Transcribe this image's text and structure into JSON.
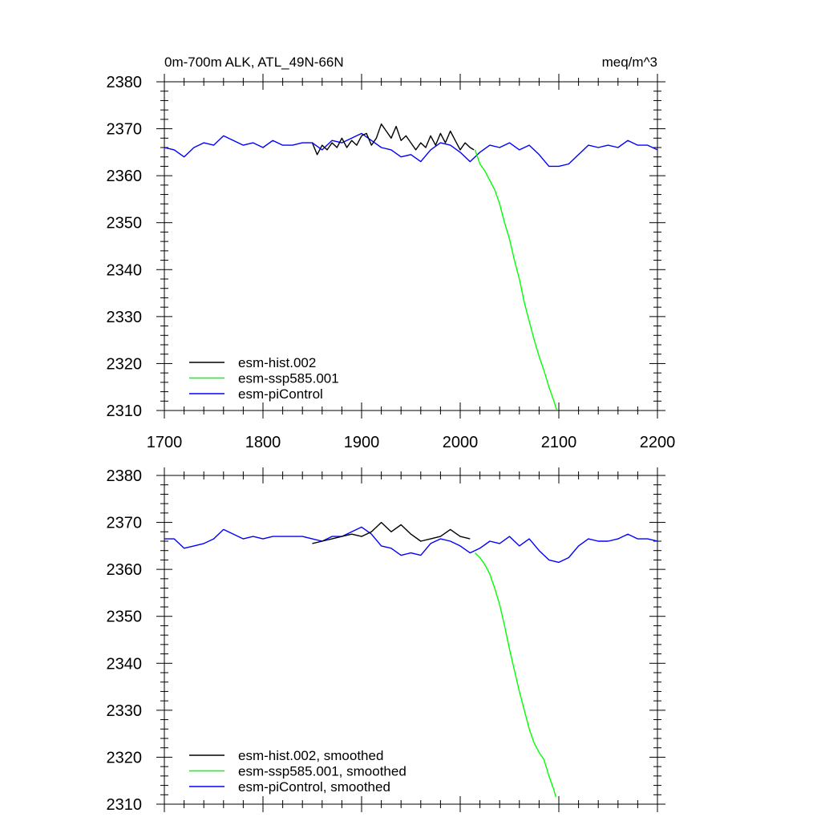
{
  "header": {
    "left_title": "0m-700m ALK, ATL_49N-66N",
    "right_title": "meq/m^3"
  },
  "chart_data": [
    {
      "type": "line",
      "xlim": [
        1700,
        2200
      ],
      "ylim": [
        2310,
        2380
      ],
      "x_ticks": [
        "1700",
        "1800",
        "1900",
        "2000",
        "2100",
        "2200"
      ],
      "y_ticks": [
        "2310",
        "2320",
        "2330",
        "2340",
        "2350",
        "2360",
        "2370",
        "2380"
      ],
      "legend_position": "bottom-left",
      "series": [
        {
          "name": "esm-hist.002",
          "color": "#000000",
          "x": [
            1850,
            1855,
            1860,
            1865,
            1870,
            1875,
            1880,
            1885,
            1890,
            1895,
            1900,
            1905,
            1910,
            1915,
            1920,
            1925,
            1930,
            1935,
            1940,
            1945,
            1950,
            1955,
            1960,
            1965,
            1970,
            1975,
            1980,
            1985,
            1990,
            1995,
            2000,
            2005,
            2010,
            2014
          ],
          "y": [
            2367.0,
            2364.5,
            2366.5,
            2365.5,
            2367.0,
            2366.0,
            2368.0,
            2366.0,
            2367.5,
            2366.5,
            2368.5,
            2369.0,
            2366.5,
            2368.0,
            2371.0,
            2369.5,
            2368.0,
            2370.5,
            2367.5,
            2368.5,
            2367.0,
            2365.5,
            2367.0,
            2366.0,
            2368.5,
            2366.5,
            2369.0,
            2367.0,
            2369.5,
            2367.5,
            2365.5,
            2367.0,
            2366.0,
            2365.5
          ]
        },
        {
          "name": "esm-ssp585.001",
          "color": "#00ff00",
          "x": [
            2015,
            2020,
            2025,
            2030,
            2035,
            2040,
            2045,
            2050,
            2055,
            2060,
            2065,
            2070,
            2075,
            2080,
            2085,
            2090,
            2095,
            2098
          ],
          "y": [
            2365.5,
            2362.5,
            2361.0,
            2359.0,
            2357.0,
            2354.0,
            2350.0,
            2346.5,
            2342.0,
            2338.0,
            2333.0,
            2329.0,
            2325.0,
            2321.5,
            2318.5,
            2315.0,
            2312.0,
            2310.0
          ]
        },
        {
          "name": "esm-piControl",
          "color": "#0000ff",
          "x": [
            1700,
            1710,
            1720,
            1730,
            1740,
            1750,
            1760,
            1770,
            1780,
            1790,
            1800,
            1810,
            1820,
            1830,
            1840,
            1850,
            1860,
            1870,
            1880,
            1890,
            1900,
            1910,
            1920,
            1930,
            1940,
            1950,
            1960,
            1970,
            1980,
            1990,
            2000,
            2010,
            2020,
            2030,
            2040,
            2050,
            2060,
            2070,
            2080,
            2090,
            2100,
            2110,
            2120,
            2130,
            2140,
            2150,
            2160,
            2170,
            2180,
            2190,
            2200
          ],
          "y": [
            2366.0,
            2365.5,
            2364.0,
            2366.0,
            2367.0,
            2366.5,
            2368.5,
            2367.5,
            2366.5,
            2367.0,
            2366.0,
            2367.5,
            2366.5,
            2366.5,
            2367.0,
            2367.0,
            2365.5,
            2367.5,
            2367.0,
            2368.0,
            2369.0,
            2367.5,
            2366.0,
            2365.5,
            2364.0,
            2364.5,
            2363.0,
            2365.5,
            2367.0,
            2366.5,
            2365.0,
            2363.0,
            2365.0,
            2366.5,
            2366.0,
            2367.0,
            2365.5,
            2366.5,
            2364.5,
            2362.0,
            2362.0,
            2362.5,
            2364.5,
            2366.5,
            2366.0,
            2366.5,
            2366.0,
            2367.5,
            2366.5,
            2366.5,
            2365.5
          ]
        }
      ]
    },
    {
      "type": "line",
      "xlim": [
        1700,
        2200
      ],
      "ylim": [
        2310,
        2380
      ],
      "y_ticks": [
        "2310",
        "2320",
        "2330",
        "2340",
        "2350",
        "2360",
        "2370",
        "2380"
      ],
      "legend_position": "bottom-left",
      "series": [
        {
          "name": "esm-hist.002, smoothed",
          "color": "#000000",
          "x": [
            1850,
            1860,
            1870,
            1880,
            1890,
            1900,
            1910,
            1920,
            1930,
            1940,
            1950,
            1960,
            1970,
            1980,
            1990,
            2000,
            2010
          ],
          "y": [
            2365.5,
            2366.0,
            2366.5,
            2367.0,
            2367.5,
            2367.0,
            2368.0,
            2370.0,
            2368.0,
            2369.5,
            2367.5,
            2366.0,
            2366.5,
            2367.0,
            2368.5,
            2367.0,
            2366.5
          ]
        },
        {
          "name": "esm-ssp585.001, smoothed",
          "color": "#00ff00",
          "x": [
            2015,
            2020,
            2025,
            2030,
            2035,
            2040,
            2045,
            2050,
            2055,
            2060,
            2065,
            2070,
            2075,
            2080,
            2085,
            2090,
            2095,
            2097
          ],
          "y": [
            2363.5,
            2362.5,
            2361.0,
            2359.0,
            2356.0,
            2352.5,
            2348.0,
            2343.0,
            2338.5,
            2334.0,
            2330.0,
            2326.0,
            2323.0,
            2321.0,
            2319.5,
            2316.0,
            2313.0,
            2311.5
          ]
        },
        {
          "name": "esm-piControl, smoothed",
          "color": "#0000ff",
          "x": [
            1700,
            1710,
            1720,
            1730,
            1740,
            1750,
            1760,
            1770,
            1780,
            1790,
            1800,
            1810,
            1820,
            1830,
            1840,
            1850,
            1860,
            1870,
            1880,
            1890,
            1900,
            1910,
            1920,
            1930,
            1940,
            1950,
            1960,
            1970,
            1980,
            1990,
            2000,
            2010,
            2020,
            2030,
            2040,
            2050,
            2060,
            2070,
            2080,
            2090,
            2100,
            2110,
            2120,
            2130,
            2140,
            2150,
            2160,
            2170,
            2180,
            2190,
            2200
          ],
          "y": [
            2366.5,
            2366.5,
            2364.5,
            2365.0,
            2365.5,
            2366.5,
            2368.5,
            2367.5,
            2366.5,
            2367.0,
            2366.5,
            2367.0,
            2367.0,
            2367.0,
            2367.0,
            2366.5,
            2366.0,
            2367.0,
            2367.0,
            2368.0,
            2369.0,
            2367.5,
            2365.0,
            2364.5,
            2363.0,
            2363.5,
            2363.0,
            2365.5,
            2366.5,
            2366.0,
            2365.0,
            2363.5,
            2364.5,
            2366.0,
            2365.5,
            2367.0,
            2365.0,
            2366.5,
            2364.0,
            2362.0,
            2361.5,
            2362.5,
            2365.0,
            2366.5,
            2366.0,
            2366.0,
            2366.5,
            2367.5,
            2366.5,
            2366.5,
            2366.0
          ]
        }
      ]
    }
  ]
}
